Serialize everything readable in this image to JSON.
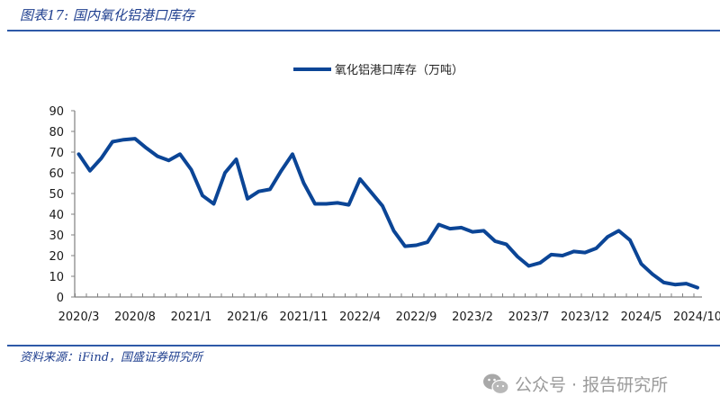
{
  "figure": {
    "title": "图表17:  国内氧化铝港口库存",
    "source": "资料来源：iFind，国盛证券研究所"
  },
  "watermark": {
    "icon": "wechat-icon",
    "text": "公众号 · 报告研究所"
  },
  "colors": {
    "line": "#0b4596",
    "title": "#1f3f8f",
    "rule": "#2e5aa8",
    "axis": "#808080"
  },
  "chart_data": {
    "type": "line",
    "title": "",
    "xlabel": "",
    "ylabel": "",
    "ylim": [
      0,
      90
    ],
    "yticks": [
      0,
      10,
      20,
      30,
      40,
      50,
      60,
      70,
      80,
      90
    ],
    "grid": false,
    "legend_position": "top-center",
    "x_tick_labels": [
      "2020/3",
      "2020/8",
      "2021/1",
      "2021/6",
      "2021/11",
      "2022/4",
      "2022/9",
      "2023/2",
      "2023/7",
      "2023/12",
      "2024/5",
      "2024/10"
    ],
    "x": [
      "2020/3",
      "2020/4",
      "2020/5",
      "2020/6",
      "2020/7",
      "2020/8",
      "2020/9",
      "2020/10",
      "2020/11",
      "2020/12",
      "2021/1",
      "2021/2",
      "2021/3",
      "2021/4",
      "2021/5",
      "2021/6",
      "2021/7",
      "2021/8",
      "2021/9",
      "2021/10",
      "2021/11",
      "2021/12",
      "2022/1",
      "2022/2",
      "2022/3",
      "2022/4",
      "2022/5",
      "2022/6",
      "2022/7",
      "2022/8",
      "2022/9",
      "2022/10",
      "2022/11",
      "2022/12",
      "2023/1",
      "2023/2",
      "2023/3",
      "2023/4",
      "2023/5",
      "2023/6",
      "2023/7",
      "2023/8",
      "2023/9",
      "2023/10",
      "2023/11",
      "2023/12",
      "2024/1",
      "2024/2",
      "2024/3",
      "2024/4",
      "2024/5",
      "2024/6",
      "2024/7",
      "2024/8",
      "2024/9",
      "2024/10"
    ],
    "series": [
      {
        "name": "氧化铝港口库存（万吨）",
        "values": [
          69,
          61,
          67,
          75,
          76,
          76.5,
          72,
          68,
          66,
          69,
          61.5,
          49,
          45,
          60,
          66.5,
          47.5,
          51,
          52,
          61,
          69,
          55,
          45,
          45,
          45.5,
          44.5,
          57,
          50.5,
          44,
          32,
          24.5,
          25,
          26.5,
          35,
          33,
          33.5,
          31.5,
          32,
          27,
          25.5,
          19.5,
          15,
          16.5,
          20.5,
          20,
          22,
          21.5,
          23.5,
          29,
          32,
          27.5,
          16,
          11,
          7,
          6,
          6.5,
          4.5
        ]
      }
    ]
  }
}
